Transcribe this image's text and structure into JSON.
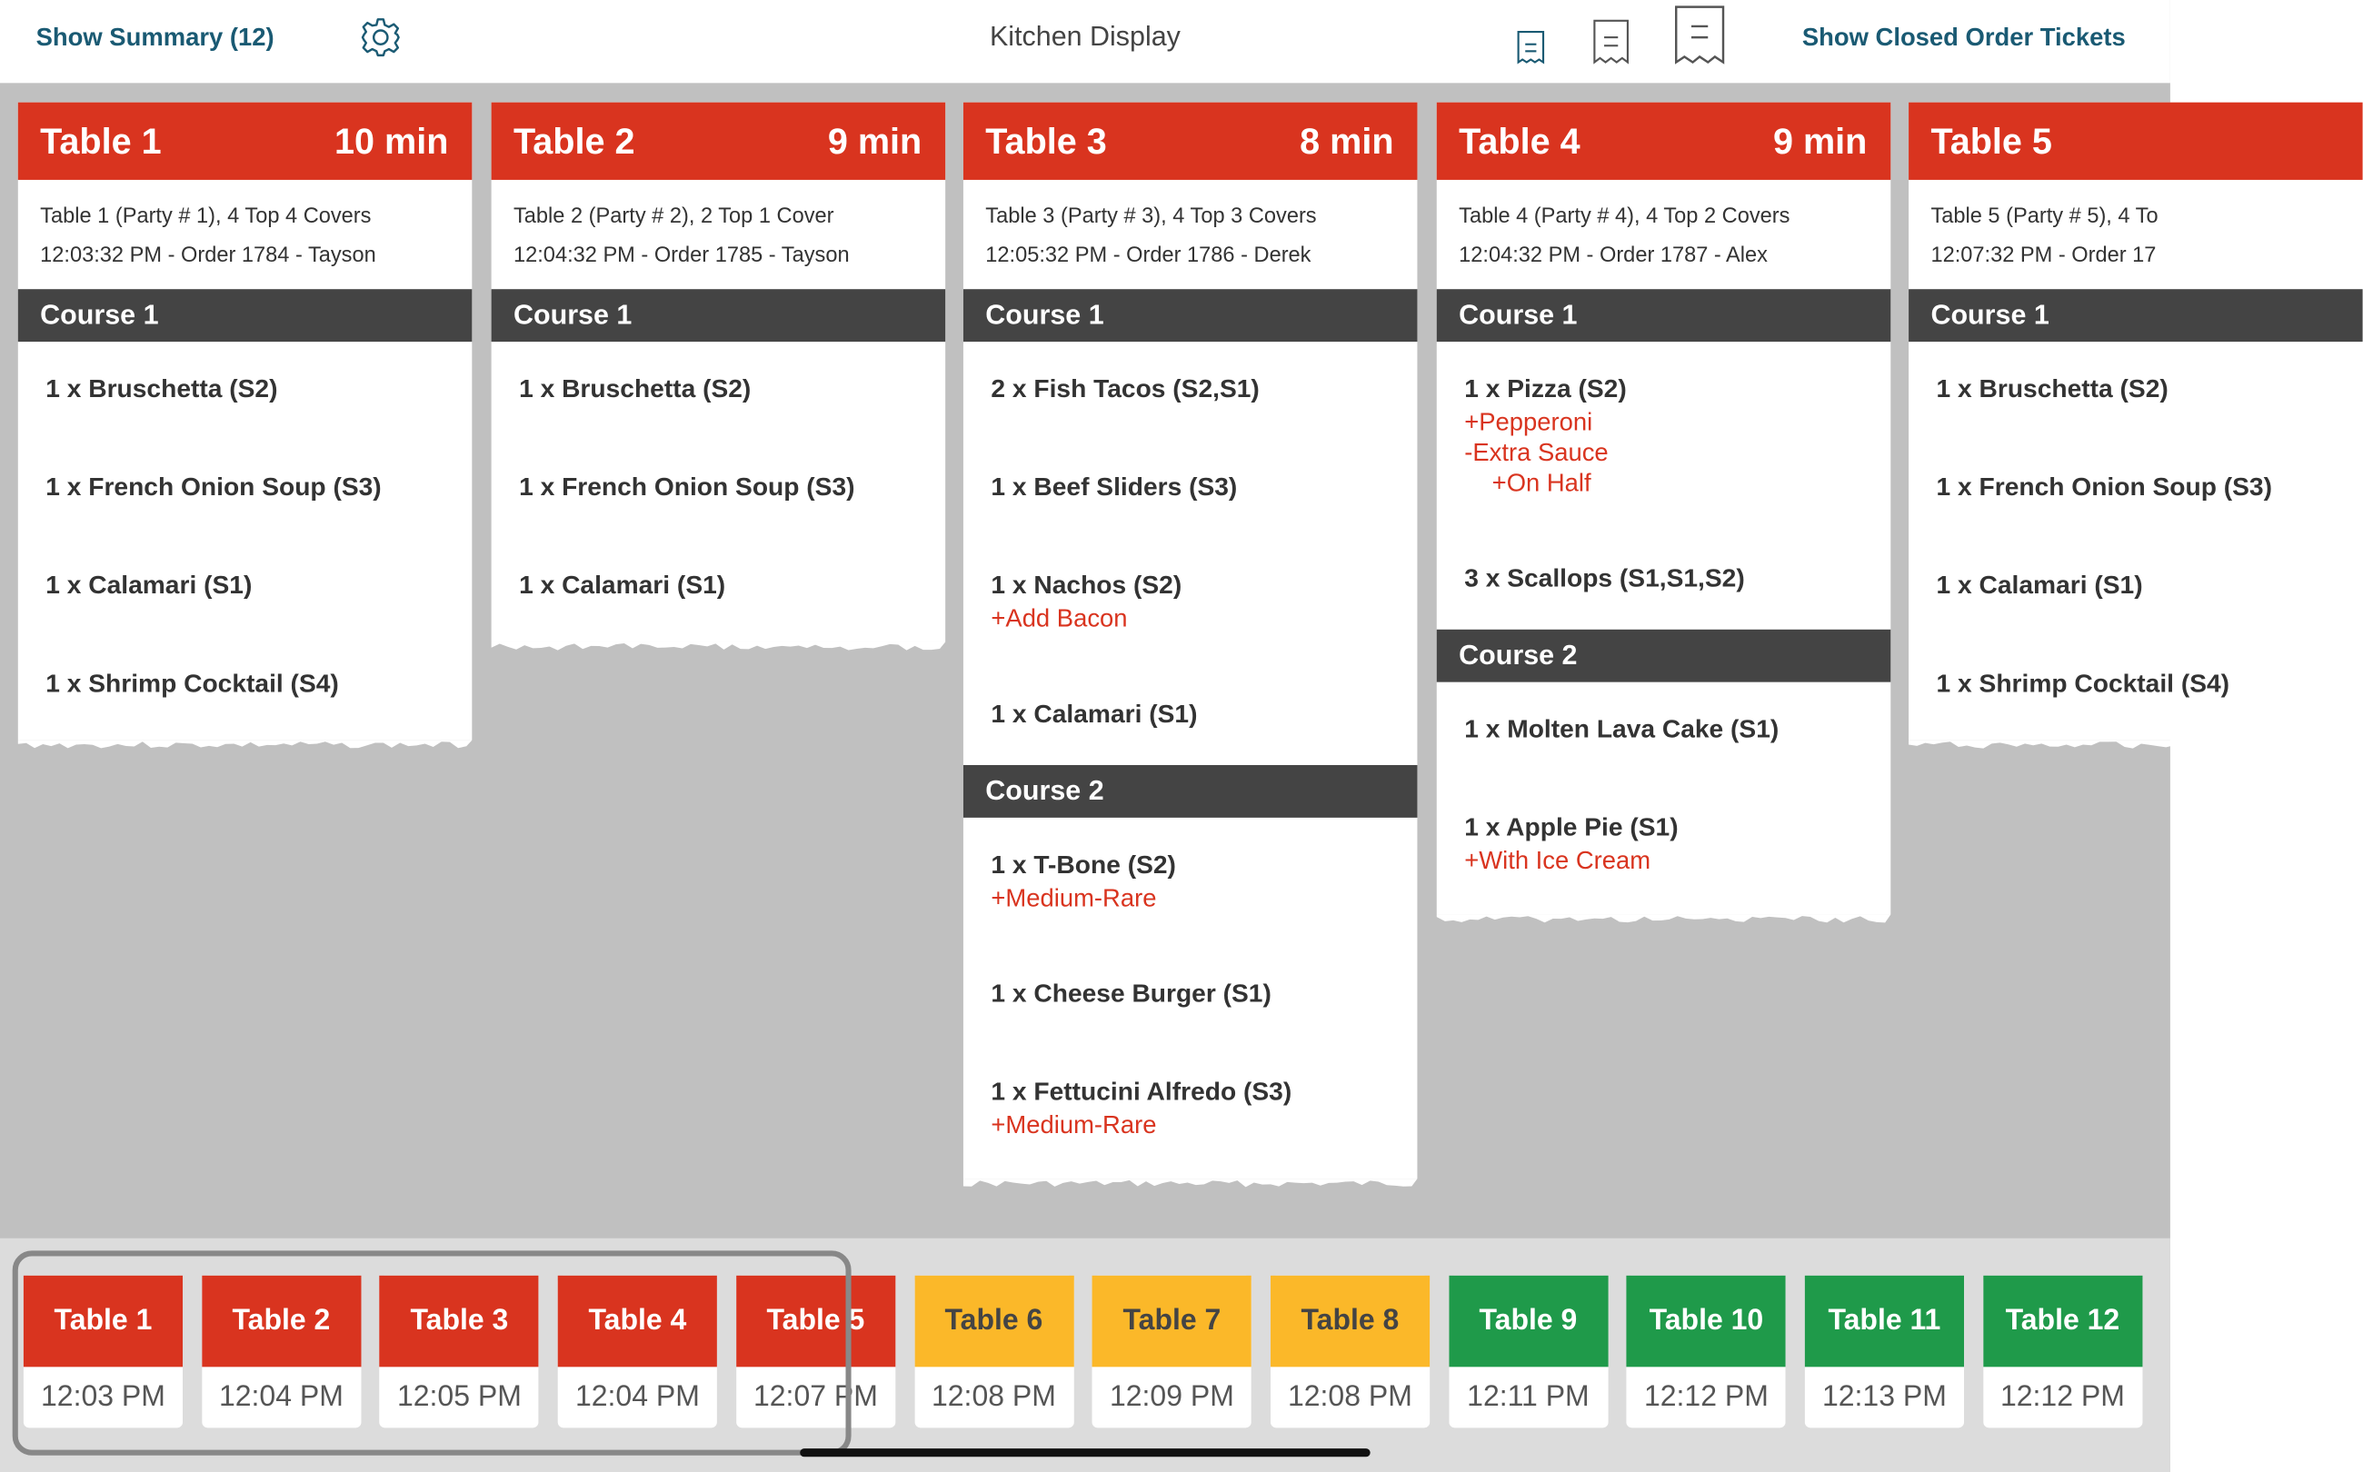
{
  "header": {
    "show_summary": "Show Summary (12)",
    "title": "Kitchen Display",
    "show_closed": "Show Closed Order Tickets"
  },
  "tickets": [
    {
      "table": "Table 1",
      "elapsed": "10 min",
      "info": [
        "Table 1 (Party # 1), 4 Top 4 Covers",
        "12:03:32 PM - Order 1784 - Tayson"
      ],
      "courses": [
        {
          "name": "Course 1",
          "items": [
            {
              "text": "1 x Bruschetta (S2)"
            },
            {
              "text": "1 x French Onion Soup (S3)"
            },
            {
              "text": "1 x Calamari (S1)"
            },
            {
              "text": "1 x Shrimp Cocktail (S4)"
            }
          ]
        }
      ]
    },
    {
      "table": "Table 2",
      "elapsed": "9 min",
      "info": [
        "Table 2 (Party # 2), 2 Top 1 Cover",
        "12:04:32 PM - Order 1785 - Tayson"
      ],
      "courses": [
        {
          "name": "Course 1",
          "items": [
            {
              "text": "1 x Bruschetta (S2)"
            },
            {
              "text": "1 x French Onion Soup (S3)"
            },
            {
              "text": "1 x Calamari (S1)"
            }
          ]
        }
      ]
    },
    {
      "table": "Table 3",
      "elapsed": "8 min",
      "info": [
        "Table 3 (Party # 3), 4 Top 3 Covers",
        "12:05:32 PM - Order 1786 - Derek"
      ],
      "courses": [
        {
          "name": "Course 1",
          "items": [
            {
              "text": "2 x Fish Tacos (S2,S1)"
            },
            {
              "text": "1 x Beef Sliders (S3)"
            },
            {
              "text": "1 x Nachos (S2)",
              "mods": [
                "+Add Bacon"
              ]
            },
            {
              "text": "1 x Calamari (S1)"
            }
          ]
        },
        {
          "name": "Course 2",
          "items": [
            {
              "text": "1 x T-Bone (S2)",
              "mods": [
                "+Medium-Rare"
              ]
            },
            {
              "text": "1 x Cheese Burger (S1)"
            },
            {
              "text": "1 x Fettucini Alfredo (S3)",
              "mods": [
                "+Medium-Rare"
              ]
            }
          ]
        }
      ]
    },
    {
      "table": "Table 4",
      "elapsed": "9 min",
      "info": [
        "Table 4 (Party # 4), 4 Top 2 Covers",
        "12:04:32 PM - Order 1787 - Alex"
      ],
      "courses": [
        {
          "name": "Course 1",
          "items": [
            {
              "text": "1 x Pizza (S2)",
              "mods": [
                "+Pepperoni",
                "-Extra Sauce"
              ],
              "submods": [
                "+On Half"
              ]
            },
            {
              "text": "3 x Scallops (S1,S1,S2)"
            }
          ]
        },
        {
          "name": "Course 2",
          "items": [
            {
              "text": "1 x Molten Lava Cake (S1)"
            },
            {
              "text": "1 x Apple Pie (S1)",
              "mods": [
                "+With Ice Cream"
              ]
            }
          ]
        }
      ]
    },
    {
      "table": "Table 5",
      "info": [
        "Table 5 (Party # 5), 4 To",
        "12:07:32 PM - Order 17"
      ],
      "courses": [
        {
          "name": "Course 1",
          "items": [
            {
              "text": "1 x Bruschetta (S2)"
            },
            {
              "text": "1 x French Onion Soup (S3)"
            },
            {
              "text": "1 x Calamari (S1)"
            },
            {
              "text": "1 x Shrimp Cocktail (S4)"
            }
          ]
        }
      ]
    }
  ],
  "tabs": [
    {
      "table": "Table 1",
      "time": "12:03 PM",
      "color": "#d9341f"
    },
    {
      "table": "Table 2",
      "time": "12:04 PM",
      "color": "#d9341f"
    },
    {
      "table": "Table 3",
      "time": "12:05 PM",
      "color": "#d9341f"
    },
    {
      "table": "Table 4",
      "time": "12:04 PM",
      "color": "#d9341f"
    },
    {
      "table": "Table 5",
      "time": "12:07 PM",
      "color": "#d9341f"
    },
    {
      "table": "Table 6",
      "time": "12:08 PM",
      "color": "#fbb829"
    },
    {
      "table": "Table 7",
      "time": "12:09 PM",
      "color": "#fbb829"
    },
    {
      "table": "Table 8",
      "time": "12:08 PM",
      "color": "#fbb829"
    },
    {
      "table": "Table 9",
      "time": "12:11 PM",
      "color": "#1f9a4a"
    },
    {
      "table": "Table 10",
      "time": "12:12 PM",
      "color": "#1f9a4a"
    },
    {
      "table": "Table 11",
      "time": "12:13 PM",
      "color": "#1f9a4a"
    },
    {
      "table": "Table 12",
      "time": "12:12 PM",
      "color": "#1f9a4a"
    }
  ]
}
